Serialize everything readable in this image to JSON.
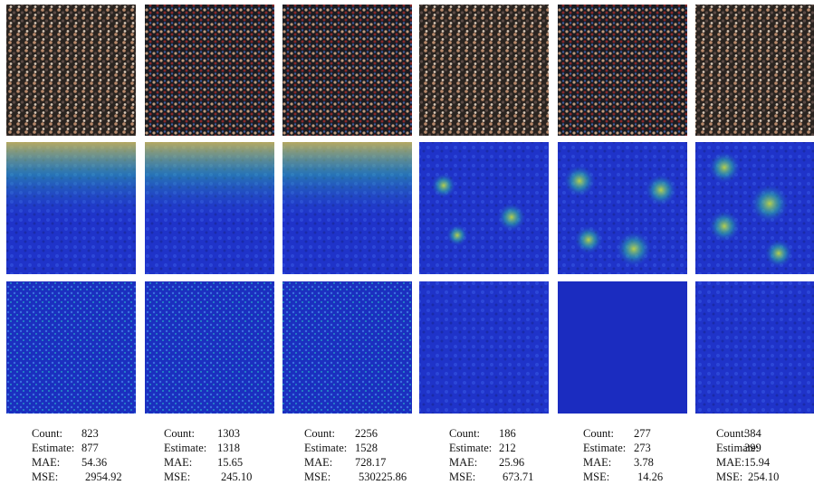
{
  "labels": [
    "Count:",
    "Estimate:",
    "MAE:",
    "MSE:"
  ],
  "stats": [
    [
      "823",
      "877",
      "54.36",
      "2954.92"
    ],
    [
      "1303",
      "1318",
      "15.65",
      "245.10"
    ],
    [
      "2256",
      "1528",
      "728.17",
      "530225.86"
    ],
    [
      "186",
      "212",
      "25.96",
      "673.71"
    ],
    [
      "277",
      "273",
      "3.78",
      "14.26"
    ],
    [
      "384",
      "399",
      "15.94",
      "254.10"
    ]
  ]
}
